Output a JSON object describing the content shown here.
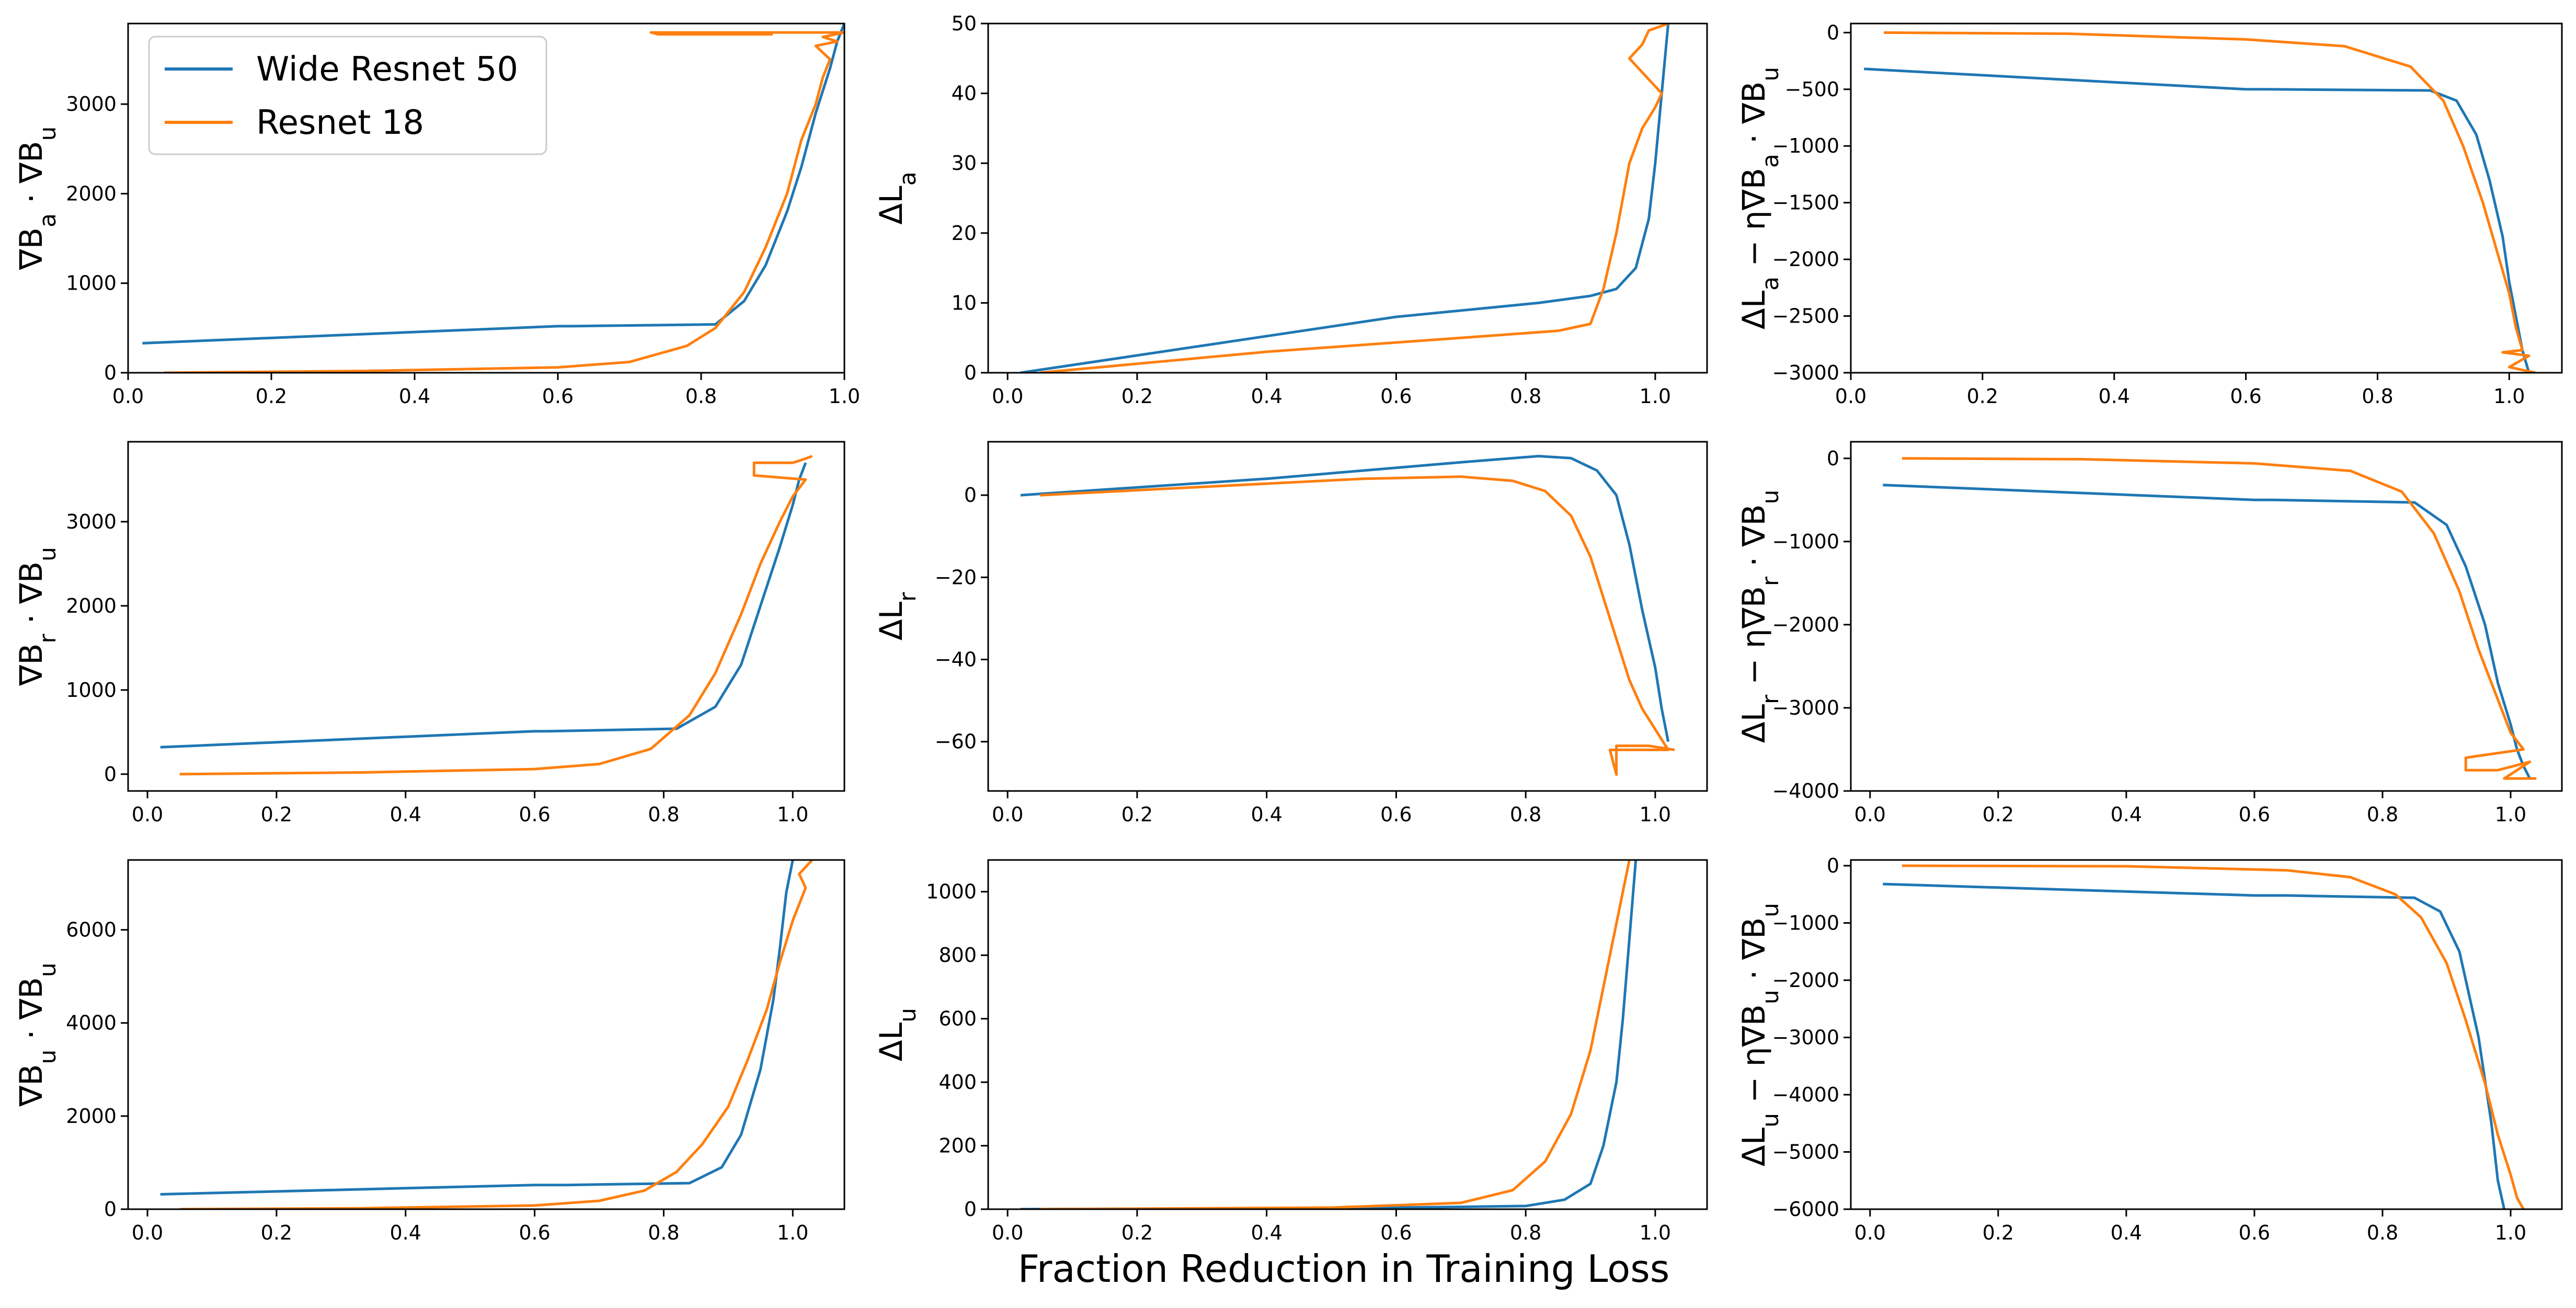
{
  "figure": {
    "xlabel": "Fraction Reduction in Training Loss",
    "legend": {
      "placement": "top-left of first panel",
      "entries": [
        {
          "label": "Wide Resnet 50",
          "color": "#1f77b4"
        },
        {
          "label": "Resnet 18",
          "color": "#ff7f0e"
        }
      ]
    }
  },
  "chart_data": [
    {
      "type": "line",
      "row": 0,
      "col": 0,
      "ylabel": "∇B_a · ∇B_u",
      "xlim": [
        0.0,
        1.0
      ],
      "ylim": [
        0,
        3900
      ],
      "xticks": [
        0.0,
        0.2,
        0.4,
        0.6,
        0.8,
        1.0
      ],
      "xtick_labels": [
        "0.0",
        "0.2",
        "0.4",
        "0.6",
        "0.8",
        "1.0"
      ],
      "yticks": [
        0,
        1000,
        2000,
        3000
      ],
      "ytick_labels": [
        "0",
        "1000",
        "2000",
        "3000"
      ],
      "series": [
        {
          "name": "Wide Resnet 50",
          "color": "#1f77b4",
          "x": [
            0.02,
            0.6,
            0.62,
            0.82,
            0.86,
            0.89,
            0.92,
            0.94,
            0.96,
            0.98,
            0.99,
            1.0
          ],
          "y": [
            330,
            520,
            520,
            540,
            800,
            1200,
            1800,
            2300,
            2900,
            3400,
            3700,
            3900
          ]
        },
        {
          "name": "Resnet 18",
          "color": "#ff7f0e",
          "x": [
            0.05,
            0.33,
            0.6,
            0.7,
            0.78,
            0.82,
            0.86,
            0.89,
            0.92,
            0.94,
            0.96,
            0.97,
            0.98,
            0.96,
            0.99,
            0.97,
            1.0,
            0.95,
            0.73,
            0.74,
            0.9
          ],
          "y": [
            0,
            20,
            60,
            120,
            300,
            500,
            900,
            1400,
            2000,
            2600,
            3000,
            3300,
            3500,
            3650,
            3700,
            3750,
            3800,
            3800,
            3800,
            3780,
            3780
          ]
        }
      ]
    },
    {
      "type": "line",
      "row": 0,
      "col": 1,
      "ylabel": "ΔL_a",
      "xlim": [
        -0.03,
        1.08
      ],
      "ylim": [
        0,
        50
      ],
      "xticks": [
        0.0,
        0.2,
        0.4,
        0.6,
        0.8,
        1.0
      ],
      "xtick_labels": [
        "0.0",
        "0.2",
        "0.4",
        "0.6",
        "0.8",
        "1.0"
      ],
      "yticks": [
        0,
        10,
        20,
        30,
        40,
        50
      ],
      "ytick_labels": [
        "0",
        "10",
        "20",
        "30",
        "40",
        "50"
      ],
      "series": [
        {
          "name": "Wide Resnet 50",
          "color": "#1f77b4",
          "x": [
            0.02,
            0.6,
            0.82,
            0.9,
            0.94,
            0.97,
            0.99,
            1.0,
            1.01,
            1.02
          ],
          "y": [
            0,
            8,
            10,
            11,
            12,
            15,
            22,
            30,
            40,
            50
          ]
        },
        {
          "name": "Resnet 18",
          "color": "#ff7f0e",
          "x": [
            0.05,
            0.4,
            0.7,
            0.85,
            0.9,
            0.92,
            0.94,
            0.96,
            0.98,
            1.0,
            1.01,
            0.96,
            0.98,
            0.99,
            1.02
          ],
          "y": [
            0,
            3,
            5,
            6,
            7,
            12,
            20,
            30,
            35,
            38,
            40,
            45,
            47,
            49,
            50
          ]
        }
      ]
    },
    {
      "type": "line",
      "row": 0,
      "col": 2,
      "ylabel": "ΔL_a − η∇B_a · ∇B_u",
      "xlim": [
        0.0,
        1.08
      ],
      "ylim": [
        -3000,
        80
      ],
      "xticks": [
        0.0,
        0.2,
        0.4,
        0.6,
        0.8,
        1.0
      ],
      "xtick_labels": [
        "0.0",
        "0.2",
        "0.4",
        "0.6",
        "0.8",
        "1.0"
      ],
      "yticks": [
        -3000,
        -2500,
        -2000,
        -1500,
        -1000,
        -500,
        0
      ],
      "ytick_labels": [
        "−3000",
        "−2500",
        "−2000",
        "−1500",
        "−1000",
        "−500",
        "0"
      ],
      "series": [
        {
          "name": "Wide Resnet 50",
          "color": "#1f77b4",
          "x": [
            0.02,
            0.6,
            0.63,
            0.88,
            0.92,
            0.95,
            0.97,
            0.99,
            1.0,
            1.01,
            1.02,
            1.03
          ],
          "y": [
            -320,
            -500,
            -500,
            -510,
            -600,
            -900,
            -1300,
            -1800,
            -2200,
            -2500,
            -2800,
            -3000
          ]
        },
        {
          "name": "Resnet 18",
          "color": "#ff7f0e",
          "x": [
            0.05,
            0.33,
            0.6,
            0.75,
            0.85,
            0.9,
            0.93,
            0.96,
            0.98,
            1.0,
            1.01,
            1.02,
            0.99,
            1.03,
            1.0,
            1.04
          ],
          "y": [
            0,
            -10,
            -60,
            -120,
            -300,
            -600,
            -1000,
            -1500,
            -1900,
            -2300,
            -2600,
            -2800,
            -2820,
            -2850,
            -2950,
            -3000
          ]
        }
      ]
    },
    {
      "type": "line",
      "row": 1,
      "col": 0,
      "ylabel": "∇B_r · ∇B_u",
      "xlim": [
        -0.03,
        1.08
      ],
      "ylim": [
        -200,
        3950
      ],
      "xticks": [
        0.0,
        0.2,
        0.4,
        0.6,
        0.8,
        1.0
      ],
      "xtick_labels": [
        "0.0",
        "0.2",
        "0.4",
        "0.6",
        "0.8",
        "1.0"
      ],
      "yticks": [
        0,
        1000,
        2000,
        3000
      ],
      "ytick_labels": [
        "0",
        "1000",
        "2000",
        "3000"
      ],
      "series": [
        {
          "name": "Wide Resnet 50",
          "color": "#1f77b4",
          "x": [
            0.02,
            0.6,
            0.62,
            0.82,
            0.88,
            0.92,
            0.95,
            0.98,
            1.0,
            1.01,
            1.02
          ],
          "y": [
            320,
            510,
            510,
            540,
            800,
            1300,
            2000,
            2700,
            3200,
            3500,
            3700
          ]
        },
        {
          "name": "Resnet 18",
          "color": "#ff7f0e",
          "x": [
            0.05,
            0.33,
            0.6,
            0.7,
            0.78,
            0.84,
            0.88,
            0.92,
            0.95,
            0.98,
            1.0,
            1.02,
            0.94,
            0.94,
            1.0,
            1.02,
            1.03
          ],
          "y": [
            0,
            20,
            60,
            120,
            300,
            700,
            1200,
            1900,
            2500,
            3000,
            3300,
            3500,
            3550,
            3700,
            3700,
            3750,
            3780
          ]
        }
      ]
    },
    {
      "type": "line",
      "row": 1,
      "col": 1,
      "ylabel": "ΔL_r",
      "xlim": [
        -0.03,
        1.08
      ],
      "ylim": [
        -72,
        13
      ],
      "xticks": [
        0.0,
        0.2,
        0.4,
        0.6,
        0.8,
        1.0
      ],
      "xtick_labels": [
        "0.0",
        "0.2",
        "0.4",
        "0.6",
        "0.8",
        "1.0"
      ],
      "yticks": [
        -60,
        -40,
        -20,
        0
      ],
      "ytick_labels": [
        "−60",
        "−40",
        "−20",
        "0"
      ],
      "series": [
        {
          "name": "Wide Resnet 50",
          "color": "#1f77b4",
          "x": [
            0.02,
            0.4,
            0.7,
            0.82,
            0.87,
            0.91,
            0.94,
            0.96,
            0.98,
            1.0,
            1.01,
            1.02
          ],
          "y": [
            0,
            4,
            8,
            9.5,
            9,
            6,
            0,
            -12,
            -28,
            -42,
            -52,
            -60
          ]
        },
        {
          "name": "Resnet 18",
          "color": "#ff7f0e",
          "x": [
            0.05,
            0.3,
            0.55,
            0.7,
            0.78,
            0.83,
            0.87,
            0.9,
            0.93,
            0.96,
            0.98,
            1.0,
            1.02,
            0.93,
            0.94,
            0.94,
            0.99,
            1.03
          ],
          "y": [
            0,
            2,
            4,
            4.5,
            3.5,
            1,
            -5,
            -15,
            -30,
            -45,
            -52,
            -57,
            -62,
            -62,
            -68,
            -61,
            -61,
            -62
          ]
        }
      ]
    },
    {
      "type": "line",
      "row": 1,
      "col": 2,
      "ylabel": "ΔL_r − η∇B_r · ∇B_u",
      "xlim": [
        -0.03,
        1.08
      ],
      "ylim": [
        -4000,
        200
      ],
      "xticks": [
        0.0,
        0.2,
        0.4,
        0.6,
        0.8,
        1.0
      ],
      "xtick_labels": [
        "0.0",
        "0.2",
        "0.4",
        "0.6",
        "0.8",
        "1.0"
      ],
      "yticks": [
        -4000,
        -3000,
        -2000,
        -1000,
        0
      ],
      "ytick_labels": [
        "−4000",
        "−3000",
        "−2000",
        "−1000",
        "0"
      ],
      "series": [
        {
          "name": "Wide Resnet 50",
          "color": "#1f77b4",
          "x": [
            0.02,
            0.6,
            0.63,
            0.85,
            0.9,
            0.93,
            0.96,
            0.98,
            1.0,
            1.01,
            1.02,
            1.03
          ],
          "y": [
            -320,
            -500,
            -500,
            -530,
            -800,
            -1300,
            -2000,
            -2700,
            -3200,
            -3500,
            -3700,
            -3850
          ]
        },
        {
          "name": "Resnet 18",
          "color": "#ff7f0e",
          "x": [
            0.05,
            0.33,
            0.6,
            0.75,
            0.83,
            0.88,
            0.92,
            0.95,
            0.98,
            1.0,
            1.02,
            0.93,
            0.93,
            0.98,
            1.03,
            0.99,
            1.04
          ],
          "y": [
            0,
            -10,
            -60,
            -150,
            -400,
            -900,
            -1600,
            -2300,
            -2900,
            -3300,
            -3500,
            -3600,
            -3750,
            -3750,
            -3650,
            -3850,
            -3850
          ]
        }
      ]
    },
    {
      "type": "line",
      "row": 2,
      "col": 0,
      "ylabel": "∇B_u · ∇B_u",
      "xlim": [
        -0.03,
        1.08
      ],
      "ylim": [
        0,
        7500
      ],
      "xticks": [
        0.0,
        0.2,
        0.4,
        0.6,
        0.8,
        1.0
      ],
      "xtick_labels": [
        "0.0",
        "0.2",
        "0.4",
        "0.6",
        "0.8",
        "1.0"
      ],
      "yticks": [
        0,
        2000,
        4000,
        6000
      ],
      "ytick_labels": [
        "0",
        "2000",
        "4000",
        "6000"
      ],
      "series": [
        {
          "name": "Wide Resnet 50",
          "color": "#1f77b4",
          "x": [
            0.02,
            0.6,
            0.65,
            0.84,
            0.89,
            0.92,
            0.95,
            0.97,
            0.98,
            0.99,
            1.0
          ],
          "y": [
            320,
            520,
            520,
            560,
            900,
            1600,
            3000,
            4500,
            5600,
            6800,
            7500
          ]
        },
        {
          "name": "Resnet 18",
          "color": "#ff7f0e",
          "x": [
            0.05,
            0.33,
            0.6,
            0.7,
            0.77,
            0.82,
            0.86,
            0.9,
            0.93,
            0.96,
            0.98,
            1.0,
            1.02,
            1.01,
            1.03
          ],
          "y": [
            0,
            20,
            80,
            180,
            400,
            800,
            1400,
            2200,
            3200,
            4300,
            5300,
            6200,
            6900,
            7200,
            7500
          ]
        }
      ]
    },
    {
      "type": "line",
      "row": 2,
      "col": 1,
      "ylabel": "ΔL_u",
      "xlim": [
        -0.03,
        1.08
      ],
      "ylim": [
        0,
        1100
      ],
      "xticks": [
        0.0,
        0.2,
        0.4,
        0.6,
        0.8,
        1.0
      ],
      "xtick_labels": [
        "0.0",
        "0.2",
        "0.4",
        "0.6",
        "0.8",
        "1.0"
      ],
      "yticks": [
        0,
        200,
        400,
        600,
        800,
        1000
      ],
      "ytick_labels": [
        "0",
        "200",
        "400",
        "600",
        "800",
        "1000"
      ],
      "series": [
        {
          "name": "Wide Resnet 50",
          "color": "#1f77b4",
          "x": [
            0.02,
            0.6,
            0.8,
            0.86,
            0.9,
            0.92,
            0.94,
            0.95,
            0.96,
            0.97
          ],
          "y": [
            0,
            5,
            10,
            30,
            80,
            200,
            400,
            600,
            850,
            1100
          ]
        },
        {
          "name": "Resnet 18",
          "color": "#ff7f0e",
          "x": [
            0.05,
            0.5,
            0.7,
            0.78,
            0.83,
            0.87,
            0.9,
            0.92,
            0.94,
            0.95,
            0.96
          ],
          "y": [
            0,
            5,
            20,
            60,
            150,
            300,
            500,
            700,
            900,
            1000,
            1100
          ]
        }
      ]
    },
    {
      "type": "line",
      "row": 2,
      "col": 2,
      "ylabel": "ΔL_u − η∇B_u · ∇B_u",
      "xlim": [
        -0.03,
        1.08
      ],
      "ylim": [
        -6000,
        100
      ],
      "xticks": [
        0.0,
        0.2,
        0.4,
        0.6,
        0.8,
        1.0
      ],
      "xtick_labels": [
        "0.0",
        "0.2",
        "0.4",
        "0.6",
        "0.8",
        "1.0"
      ],
      "yticks": [
        -6000,
        -5000,
        -4000,
        -3000,
        -2000,
        -1000,
        0
      ],
      "ytick_labels": [
        "−6000",
        "−5000",
        "−4000",
        "−3000",
        "−2000",
        "−1000",
        "0"
      ],
      "series": [
        {
          "name": "Wide Resnet 50",
          "color": "#1f77b4",
          "x": [
            0.02,
            0.6,
            0.65,
            0.85,
            0.89,
            0.92,
            0.95,
            0.97,
            0.98,
            0.99
          ],
          "y": [
            -320,
            -520,
            -520,
            -560,
            -800,
            -1500,
            -3000,
            -4500,
            -5500,
            -6000
          ]
        },
        {
          "name": "Resnet 18",
          "color": "#ff7f0e",
          "x": [
            0.05,
            0.4,
            0.65,
            0.75,
            0.82,
            0.86,
            0.9,
            0.93,
            0.96,
            0.98,
            1.0,
            1.01,
            1.02
          ],
          "y": [
            0,
            -10,
            -80,
            -200,
            -500,
            -900,
            -1700,
            -2700,
            -3800,
            -4700,
            -5400,
            -5800,
            -6000
          ]
        }
      ]
    }
  ]
}
